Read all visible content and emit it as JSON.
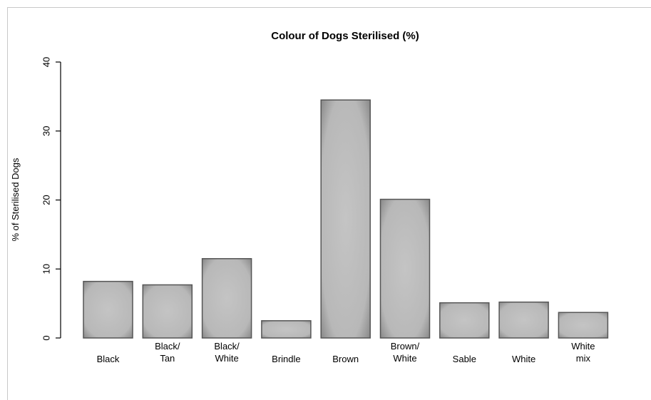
{
  "chart_data": {
    "type": "bar",
    "title": "Colour of Dogs Sterilised (%)",
    "xlabel": "",
    "ylabel": "% of Sterilised Dogs",
    "ylim": [
      0,
      40
    ],
    "yticks": [
      0,
      10,
      20,
      30,
      40
    ],
    "categories": [
      [
        "Black"
      ],
      [
        "Black/",
        "Tan"
      ],
      [
        "Black/",
        "White"
      ],
      [
        "Brindle"
      ],
      [
        "Brown"
      ],
      [
        "Brown/",
        "White"
      ],
      [
        "Sable"
      ],
      [
        "White"
      ],
      [
        "White",
        "mix"
      ]
    ],
    "values": [
      8.2,
      7.7,
      11.5,
      2.5,
      34.5,
      20.1,
      5.1,
      5.2,
      3.7
    ],
    "colors": {
      "bar_fill": "#bdbdbd",
      "bar_edge": "#555555",
      "axis": "#000000"
    },
    "grid": false,
    "legend": "none"
  }
}
